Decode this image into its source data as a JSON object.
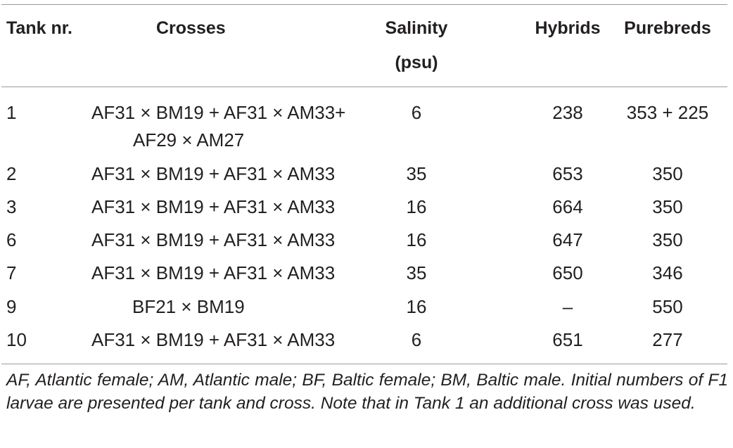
{
  "table": {
    "headers": {
      "tank": "Tank nr.",
      "crosses": "Crosses",
      "salinity_line1": "Salinity",
      "salinity_line2": "(psu)",
      "hybrids": "Hybrids",
      "purebreds": "Purebreds"
    },
    "rows": [
      {
        "tank": "1",
        "crosses_line1": "AF31 × BM19 + AF31 × AM33+",
        "crosses_line2": "AF29 × AM27",
        "salinity": "6",
        "hybrids": "238",
        "purebreds": "353 + 225"
      },
      {
        "tank": "2",
        "crosses_line1": "AF31 × BM19 + AF31 × AM33",
        "salinity": "35",
        "hybrids": "653",
        "purebreds": "350"
      },
      {
        "tank": "3",
        "crosses_line1": "AF31 × BM19 + AF31 × AM33",
        "salinity": "16",
        "hybrids": "664",
        "purebreds": "350"
      },
      {
        "tank": "6",
        "crosses_line1": "AF31 × BM19 + AF31 × AM33",
        "salinity": "16",
        "hybrids": "647",
        "purebreds": "350"
      },
      {
        "tank": "7",
        "crosses_line1": "AF31 × BM19 + AF31 × AM33",
        "salinity": "35",
        "hybrids": "650",
        "purebreds": "346"
      },
      {
        "tank": "9",
        "crosses_line1": "BF21 × BM19",
        "salinity": "16",
        "hybrids": "–",
        "purebreds": "550"
      },
      {
        "tank": "10",
        "crosses_line1": "AF31 × BM19 + AF31 × AM33",
        "salinity": "6",
        "hybrids": "651",
        "purebreds": "277"
      }
    ]
  },
  "caption": "AF, Atlantic female; AM, Atlantic male; BF, Baltic female; BM, Baltic male. Initial numbers of F1 larvae are presented per tank and cross. Note that in Tank 1 an additional cross was used."
}
